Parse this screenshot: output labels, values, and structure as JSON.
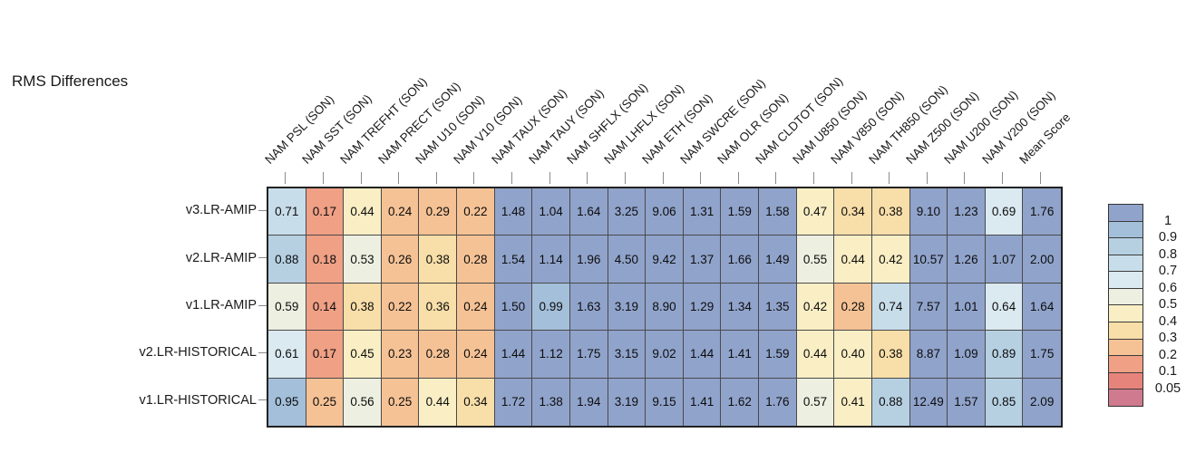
{
  "chart_data": {
    "type": "heatmap",
    "title": "RMS Differences",
    "columns": [
      "NAM PSL (SON)",
      "NAM SST (SON)",
      "NAM TREFHT (SON)",
      "NAM PRECT (SON)",
      "NAM U10 (SON)",
      "NAM V10 (SON)",
      "NAM TAUX (SON)",
      "NAM TAUY (SON)",
      "NAM SHFLX (SON)",
      "NAM LHFLX (SON)",
      "NAM ETH (SON)",
      "NAM SWCRE (SON)",
      "NAM OLR (SON)",
      "NAM CLDTOT (SON)",
      "NAM U850 (SON)",
      "NAM V850 (SON)",
      "NAM TH850 (SON)",
      "NAM Z500 (SON)",
      "NAM U200 (SON)",
      "NAM V200 (SON)",
      "Mean Score"
    ],
    "rows": [
      "v3.LR-AMIP",
      "v2.LR-AMIP",
      "v1.LR-AMIP",
      "v2.LR-HISTORICAL",
      "v1.LR-HISTORICAL"
    ],
    "values": [
      [
        "0.71",
        "0.17",
        "0.44",
        "0.24",
        "0.29",
        "0.22",
        "1.48",
        "1.04",
        "1.64",
        "3.25",
        "9.06",
        "1.31",
        "1.59",
        "1.58",
        "0.47",
        "0.34",
        "0.38",
        "9.10",
        "1.23",
        "0.69",
        "1.76"
      ],
      [
        "0.88",
        "0.18",
        "0.53",
        "0.26",
        "0.38",
        "0.28",
        "1.54",
        "1.14",
        "1.96",
        "4.50",
        "9.42",
        "1.37",
        "1.66",
        "1.49",
        "0.55",
        "0.44",
        "0.42",
        "10.57",
        "1.26",
        "1.07",
        "2.00"
      ],
      [
        "0.59",
        "0.14",
        "0.38",
        "0.22",
        "0.36",
        "0.24",
        "1.50",
        "0.99",
        "1.63",
        "3.19",
        "8.90",
        "1.29",
        "1.34",
        "1.35",
        "0.42",
        "0.28",
        "0.74",
        "7.57",
        "1.01",
        "0.64",
        "1.64"
      ],
      [
        "0.61",
        "0.17",
        "0.45",
        "0.23",
        "0.28",
        "0.24",
        "1.44",
        "1.12",
        "1.75",
        "3.15",
        "9.02",
        "1.44",
        "1.41",
        "1.59",
        "0.44",
        "0.40",
        "0.38",
        "8.87",
        "1.09",
        "0.89",
        "1.75"
      ],
      [
        "0.95",
        "0.25",
        "0.56",
        "0.25",
        "0.44",
        "0.34",
        "1.72",
        "1.38",
        "1.94",
        "3.19",
        "9.15",
        "1.41",
        "1.62",
        "1.76",
        "0.57",
        "0.41",
        "0.88",
        "12.49",
        "1.57",
        "0.85",
        "2.09"
      ]
    ],
    "legend": {
      "tick_labels": [
        "1",
        "0.9",
        "0.8",
        "0.7",
        "0.6",
        "0.5",
        "0.4",
        "0.3",
        "0.2",
        "0.1",
        "0.05"
      ],
      "thresholds": [
        1,
        0.9,
        0.8,
        0.7,
        0.6,
        0.5,
        0.4,
        0.3,
        0.2,
        0.1,
        0.05
      ],
      "band_colors": [
        "#90a3cb",
        "#a3bfd9",
        "#b6d0e2",
        "#c8ddea",
        "#dbe9f0",
        "#edefe1",
        "#f9eec4",
        "#f8dea8",
        "#f5c295",
        "#f0a085",
        "#e6847b",
        "#d07a8f"
      ],
      "position": "right"
    },
    "colors": {
      "background": "#ffffff",
      "grid_border": "#222222",
      "cell_border": "#4a4a4a",
      "tick": "#8a8a8a",
      "text": "#1a1a1a"
    }
  }
}
